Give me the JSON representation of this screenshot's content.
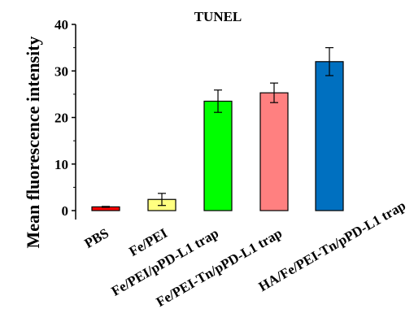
{
  "chart_data": {
    "type": "bar",
    "title": "TUNEL",
    "xlabel": "",
    "ylabel": "Mean fluorescence intensity",
    "ylim": [
      0,
      40
    ],
    "yticks": [
      0,
      10,
      20,
      30,
      40
    ],
    "grid": false,
    "categories": [
      "PBS",
      "Fe/PEI",
      "Fe/PEI/pPD-L1 trap",
      "Fe/PEI-Tn/pPD-L1 trap",
      "HA/Fe/PEI-Tn/pPD-L1 trap"
    ],
    "values": [
      0.8,
      2.4,
      23.5,
      25.3,
      32.0
    ],
    "errors": [
      0.1,
      1.3,
      2.4,
      2.1,
      3.0
    ],
    "colors": [
      "#ff0000",
      "#ffff80",
      "#00ff00",
      "#ff8080",
      "#0070c0"
    ]
  }
}
